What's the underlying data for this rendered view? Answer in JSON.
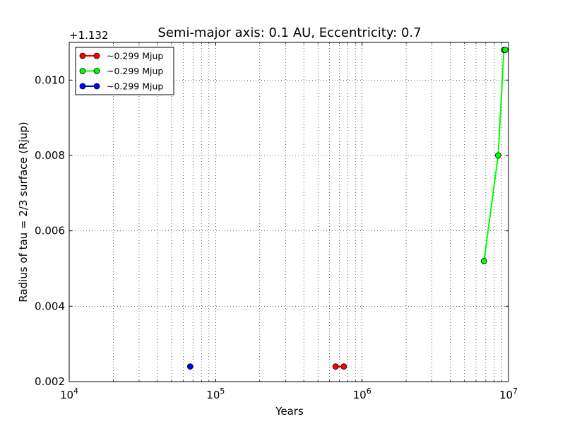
{
  "chart_data": {
    "type": "line",
    "title": "Semi-major axis: 0.1 AU, Eccentricity: 0.7",
    "xlabel": "Years",
    "ylabel": "Radius of tau = 2/3 surface (Rjup)",
    "x_scale": "log",
    "xlim": [
      10000,
      10000000
    ],
    "ylim": [
      0.002,
      0.011
    ],
    "y_offset_label": "+1.132",
    "x_ticks": [
      {
        "value": 10000,
        "base": "10",
        "exp": "4"
      },
      {
        "value": 100000,
        "base": "10",
        "exp": "5"
      },
      {
        "value": 1000000,
        "base": "10",
        "exp": "6"
      },
      {
        "value": 10000000,
        "base": "10",
        "exp": "7"
      }
    ],
    "y_ticks": [
      {
        "value": 0.002,
        "label": "0.002"
      },
      {
        "value": 0.004,
        "label": "0.004"
      },
      {
        "value": 0.006,
        "label": "0.006"
      },
      {
        "value": 0.008,
        "label": "0.008"
      },
      {
        "value": 0.01,
        "label": "0.010"
      }
    ],
    "grid": true,
    "legend_position": "top-left",
    "series": [
      {
        "name": "~0.299 Mjup",
        "color": "#ff0000",
        "x": [
          660000,
          750000
        ],
        "y": [
          0.0024,
          0.0024
        ]
      },
      {
        "name": "~0.299 Mjup",
        "color": "#00ff00",
        "x": [
          6800000,
          8500000,
          9300000,
          9500000
        ],
        "y": [
          0.0052,
          0.008,
          0.0108,
          0.0108
        ]
      },
      {
        "name": "~0.299 Mjup",
        "color": "#0000ff",
        "x": [
          67000
        ],
        "y": [
          0.0024
        ]
      }
    ]
  }
}
